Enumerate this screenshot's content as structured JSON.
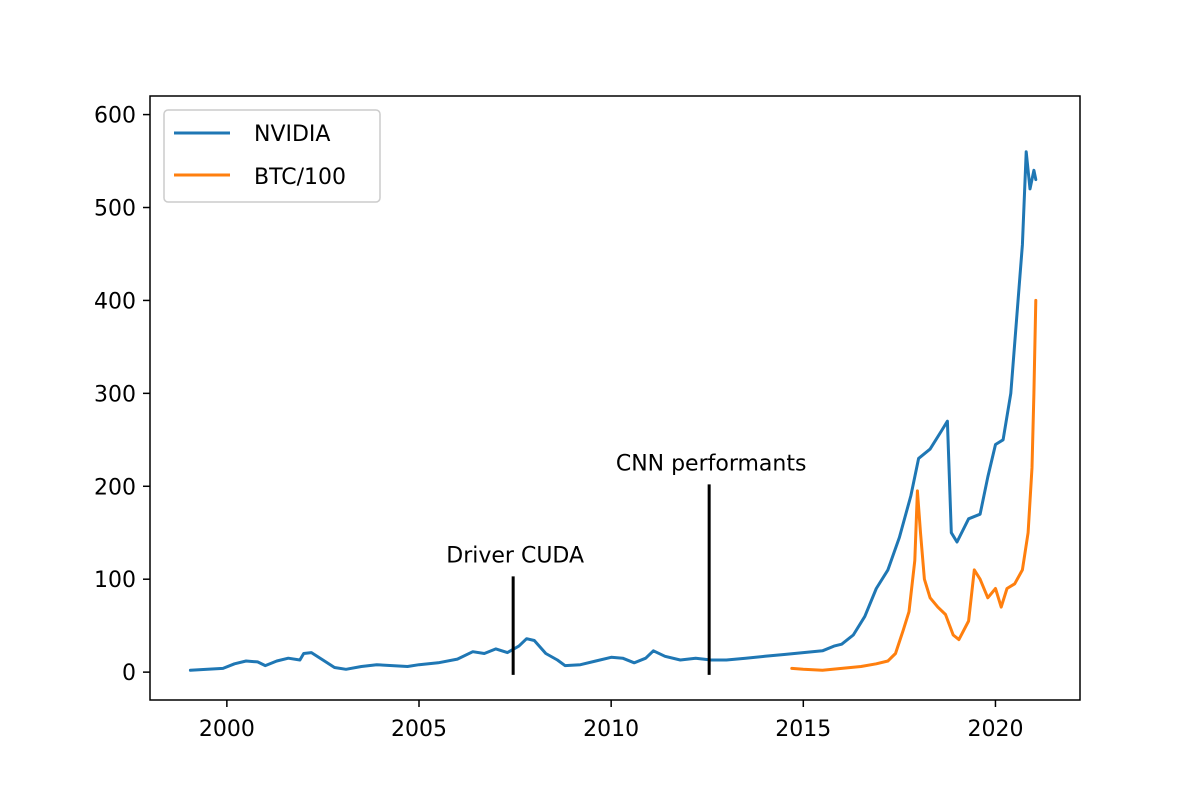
{
  "chart_data": {
    "type": "line",
    "title": "",
    "xlabel": "",
    "ylabel": "",
    "xlim": [
      1998.0,
      2022.2
    ],
    "ylim": [
      -30,
      620
    ],
    "grid": false,
    "legend_position": "top-left",
    "x_ticks": [
      2000,
      2005,
      2010,
      2015,
      2020
    ],
    "y_ticks": [
      0,
      100,
      200,
      300,
      400,
      500,
      600
    ],
    "series": [
      {
        "name": "NVIDIA",
        "color": "#1f77b4",
        "points": [
          [
            1999.05,
            2
          ],
          [
            1999.5,
            3
          ],
          [
            1999.9,
            4
          ],
          [
            2000.2,
            9
          ],
          [
            2000.5,
            12
          ],
          [
            2000.8,
            11
          ],
          [
            2001.0,
            7
          ],
          [
            2001.3,
            12
          ],
          [
            2001.6,
            15
          ],
          [
            2001.9,
            13
          ],
          [
            2002.0,
            20
          ],
          [
            2002.2,
            21
          ],
          [
            2002.5,
            13
          ],
          [
            2002.8,
            5
          ],
          [
            2003.1,
            3
          ],
          [
            2003.5,
            6
          ],
          [
            2003.9,
            8
          ],
          [
            2004.3,
            7
          ],
          [
            2004.7,
            6
          ],
          [
            2005.0,
            8
          ],
          [
            2005.5,
            10
          ],
          [
            2006.0,
            14
          ],
          [
            2006.4,
            22
          ],
          [
            2006.7,
            20
          ],
          [
            2007.0,
            25
          ],
          [
            2007.3,
            21
          ],
          [
            2007.6,
            28
          ],
          [
            2007.8,
            36
          ],
          [
            2008.0,
            34
          ],
          [
            2008.3,
            20
          ],
          [
            2008.6,
            13
          ],
          [
            2008.8,
            7
          ],
          [
            2009.2,
            8
          ],
          [
            2009.6,
            12
          ],
          [
            2010.0,
            16
          ],
          [
            2010.3,
            15
          ],
          [
            2010.6,
            10
          ],
          [
            2010.9,
            15
          ],
          [
            2011.1,
            23
          ],
          [
            2011.4,
            17
          ],
          [
            2011.8,
            13
          ],
          [
            2012.2,
            15
          ],
          [
            2012.6,
            13
          ],
          [
            2013.0,
            13
          ],
          [
            2013.5,
            15
          ],
          [
            2014.0,
            17
          ],
          [
            2014.5,
            19
          ],
          [
            2015.0,
            21
          ],
          [
            2015.5,
            23
          ],
          [
            2015.8,
            28
          ],
          [
            2016.0,
            30
          ],
          [
            2016.3,
            40
          ],
          [
            2016.6,
            60
          ],
          [
            2016.9,
            90
          ],
          [
            2017.2,
            110
          ],
          [
            2017.5,
            145
          ],
          [
            2017.8,
            190
          ],
          [
            2018.0,
            230
          ],
          [
            2018.3,
            240
          ],
          [
            2018.6,
            260
          ],
          [
            2018.75,
            270
          ],
          [
            2018.85,
            150
          ],
          [
            2019.0,
            140
          ],
          [
            2019.3,
            165
          ],
          [
            2019.6,
            170
          ],
          [
            2019.8,
            210
          ],
          [
            2020.0,
            245
          ],
          [
            2020.2,
            250
          ],
          [
            2020.4,
            300
          ],
          [
            2020.55,
            380
          ],
          [
            2020.7,
            460
          ],
          [
            2020.8,
            560
          ],
          [
            2020.9,
            520
          ],
          [
            2021.0,
            540
          ],
          [
            2021.05,
            530
          ]
        ]
      },
      {
        "name": "BTC/100",
        "color": "#ff7f0e",
        "points": [
          [
            2014.7,
            4
          ],
          [
            2015.0,
            3
          ],
          [
            2015.5,
            2
          ],
          [
            2016.0,
            4
          ],
          [
            2016.5,
            6
          ],
          [
            2016.9,
            9
          ],
          [
            2017.2,
            12
          ],
          [
            2017.4,
            20
          ],
          [
            2017.6,
            45
          ],
          [
            2017.75,
            65
          ],
          [
            2017.9,
            120
          ],
          [
            2017.97,
            195
          ],
          [
            2018.05,
            150
          ],
          [
            2018.15,
            100
          ],
          [
            2018.3,
            80
          ],
          [
            2018.5,
            70
          ],
          [
            2018.7,
            62
          ],
          [
            2018.9,
            40
          ],
          [
            2019.05,
            35
          ],
          [
            2019.3,
            55
          ],
          [
            2019.45,
            110
          ],
          [
            2019.6,
            100
          ],
          [
            2019.8,
            80
          ],
          [
            2020.0,
            90
          ],
          [
            2020.15,
            70
          ],
          [
            2020.3,
            90
          ],
          [
            2020.5,
            95
          ],
          [
            2020.7,
            110
          ],
          [
            2020.85,
            150
          ],
          [
            2020.95,
            220
          ],
          [
            2021.0,
            300
          ],
          [
            2021.05,
            400
          ]
        ]
      }
    ],
    "annotations": [
      {
        "label": "Driver CUDA",
        "x": 2007.45,
        "y_bottom": -3,
        "y_top": 103
      },
      {
        "label": "CNN performants",
        "x": 2012.55,
        "y_bottom": -3,
        "y_top": 202
      }
    ]
  }
}
